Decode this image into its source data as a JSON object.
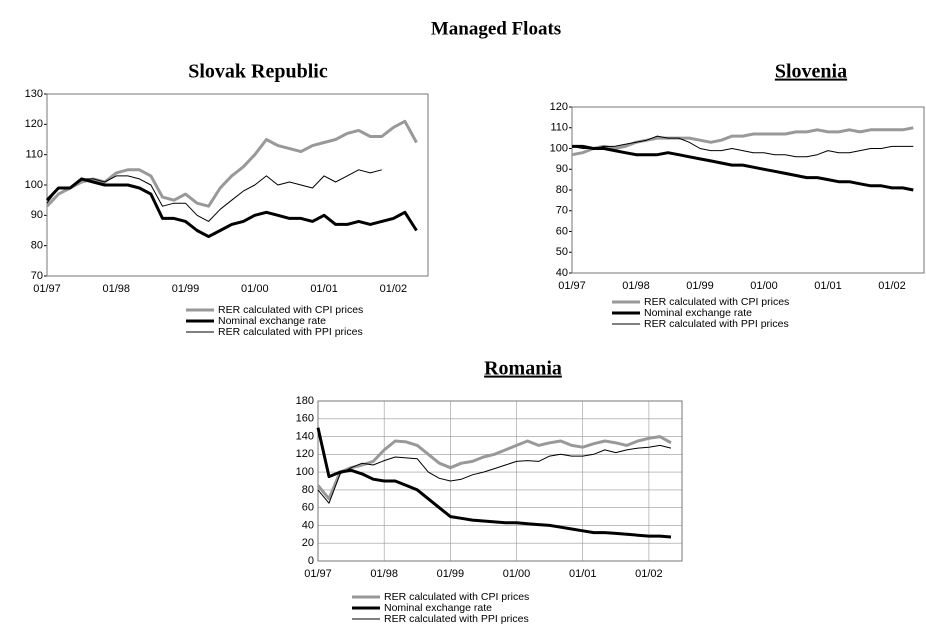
{
  "title": "Managed Floats",
  "chart_data": [
    {
      "type": "line",
      "title": "Slovak Republic",
      "underline": false,
      "grid": false,
      "categories": [
        "01/97",
        null,
        null,
        null,
        null,
        null,
        "01/98",
        null,
        null,
        null,
        null,
        null,
        "01/99",
        null,
        null,
        null,
        null,
        null,
        "01/00",
        null,
        null,
        null,
        null,
        null,
        "01/01",
        null,
        null,
        null,
        null,
        null,
        "01/02",
        null,
        null
      ],
      "ylim": [
        70,
        130
      ],
      "yticks": [
        70,
        80,
        90,
        100,
        110,
        120,
        130
      ],
      "series": [
        {
          "name": "RER calculated with CPI prices",
          "color": "#999999",
          "width": 3,
          "values": [
            93,
            97,
            99,
            101,
            102,
            101,
            104,
            105,
            105,
            103,
            96,
            95,
            97,
            94,
            93,
            99,
            103,
            106,
            110,
            115,
            113,
            112,
            111,
            113,
            114,
            115,
            117,
            118,
            116,
            116,
            119,
            121,
            114
          ]
        },
        {
          "name": "Nominal exchange rate",
          "color": "#000000",
          "width": 3,
          "values": [
            95,
            99,
            99,
            102,
            101,
            100,
            100,
            100,
            99,
            97,
            89,
            89,
            88,
            85,
            83,
            85,
            87,
            88,
            90,
            91,
            90,
            89,
            89,
            88,
            90,
            87,
            87,
            88,
            87,
            88,
            89,
            91,
            85
          ]
        },
        {
          "name": "RER calculated with PPI prices",
          "color": "#000000",
          "width": 1,
          "values": [
            94,
            99,
            99,
            102,
            102,
            101,
            103,
            103,
            102,
            100,
            93,
            94,
            94,
            90,
            88,
            92,
            95,
            98,
            100,
            103,
            100,
            101,
            100,
            99,
            103,
            101,
            103,
            105,
            104,
            105,
            null,
            null,
            null
          ]
        }
      ]
    },
    {
      "type": "line",
      "title": "Slovenia",
      "underline": true,
      "grid": false,
      "categories": [
        "01/97",
        null,
        null,
        null,
        null,
        null,
        "01/98",
        null,
        null,
        null,
        null,
        null,
        "01/99",
        null,
        null,
        null,
        null,
        null,
        "01/00",
        null,
        null,
        null,
        null,
        null,
        "01/01",
        null,
        null,
        null,
        null,
        null,
        "01/02",
        null,
        null
      ],
      "ylim": [
        40,
        120
      ],
      "yticks": [
        40,
        50,
        60,
        70,
        80,
        90,
        100,
        110,
        120
      ],
      "series": [
        {
          "name": "RER calculated with CPI prices",
          "color": "#999999",
          "width": 3,
          "values": [
            97,
            98,
            100,
            101,
            100,
            101,
            103,
            104,
            105,
            105,
            105,
            105,
            104,
            103,
            104,
            106,
            106,
            107,
            107,
            107,
            107,
            108,
            108,
            109,
            108,
            108,
            109,
            108,
            109,
            109,
            109,
            109,
            110
          ]
        },
        {
          "name": "Nominal exchange rate",
          "color": "#000000",
          "width": 3,
          "values": [
            101,
            101,
            100,
            100,
            99,
            98,
            97,
            97,
            97,
            98,
            97,
            96,
            95,
            94,
            93,
            92,
            92,
            91,
            90,
            89,
            88,
            87,
            86,
            86,
            85,
            84,
            84,
            83,
            82,
            82,
            81,
            81,
            80
          ]
        },
        {
          "name": "RER calculated with PPI prices",
          "color": "#000000",
          "width": 1,
          "values": [
            101,
            100,
            100,
            101,
            101,
            102,
            103,
            104,
            106,
            105,
            105,
            103,
            100,
            99,
            99,
            100,
            99,
            98,
            98,
            97,
            97,
            96,
            96,
            97,
            99,
            98,
            98,
            99,
            100,
            100,
            101,
            101,
            101
          ]
        }
      ]
    },
    {
      "type": "line",
      "title": "Romania",
      "underline": true,
      "grid": true,
      "categories": [
        "01/97",
        null,
        null,
        null,
        null,
        null,
        "01/98",
        null,
        null,
        null,
        null,
        null,
        "01/99",
        null,
        null,
        null,
        null,
        null,
        "01/00",
        null,
        null,
        null,
        null,
        null,
        "01/01",
        null,
        null,
        null,
        null,
        null,
        "01/02",
        null,
        null
      ],
      "ylim": [
        0,
        180
      ],
      "yticks": [
        0,
        20,
        40,
        60,
        80,
        100,
        120,
        140,
        160,
        180
      ],
      "series": [
        {
          "name": "RER calculated with CPI prices",
          "color": "#999999",
          "width": 3,
          "values": [
            85,
            70,
            100,
            105,
            108,
            112,
            125,
            135,
            134,
            130,
            120,
            110,
            105,
            110,
            112,
            117,
            120,
            125,
            130,
            135,
            130,
            133,
            135,
            130,
            128,
            132,
            135,
            133,
            130,
            135,
            138,
            140,
            133
          ]
        },
        {
          "name": "Nominal exchange rate",
          "color": "#000000",
          "width": 3,
          "values": [
            150,
            95,
            100,
            102,
            98,
            92,
            90,
            90,
            85,
            80,
            70,
            60,
            50,
            48,
            46,
            45,
            44,
            43,
            43,
            42,
            41,
            40,
            38,
            36,
            34,
            32,
            32,
            31,
            30,
            29,
            28,
            28,
            27
          ]
        },
        {
          "name": "RER calculated with PPI prices",
          "color": "#000000",
          "width": 1,
          "values": [
            80,
            65,
            98,
            105,
            110,
            108,
            113,
            117,
            116,
            115,
            100,
            93,
            90,
            92,
            97,
            100,
            104,
            108,
            112,
            113,
            112,
            118,
            120,
            118,
            118,
            120,
            125,
            122,
            125,
            127,
            128,
            130,
            127
          ]
        }
      ]
    }
  ]
}
